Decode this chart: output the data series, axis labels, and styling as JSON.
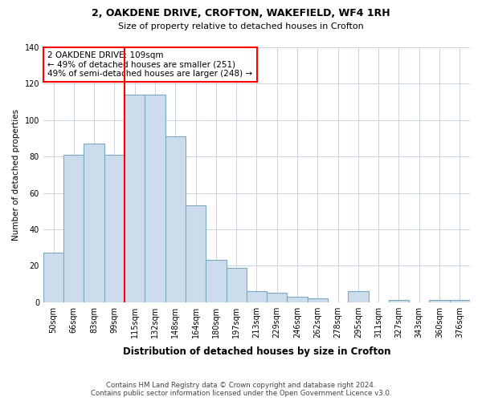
{
  "title1": "2, OAKDENE DRIVE, CROFTON, WAKEFIELD, WF4 1RH",
  "title2": "Size of property relative to detached houses in Crofton",
  "xlabel": "Distribution of detached houses by size in Crofton",
  "ylabel": "Number of detached properties",
  "footer1": "Contains HM Land Registry data © Crown copyright and database right 2024.",
  "footer2": "Contains public sector information licensed under the Open Government Licence v3.0.",
  "categories": [
    "50sqm",
    "66sqm",
    "83sqm",
    "99sqm",
    "115sqm",
    "132sqm",
    "148sqm",
    "164sqm",
    "180sqm",
    "197sqm",
    "213sqm",
    "229sqm",
    "246sqm",
    "262sqm",
    "278sqm",
    "295sqm",
    "311sqm",
    "327sqm",
    "343sqm",
    "360sqm",
    "376sqm"
  ],
  "values": [
    27,
    81,
    87,
    81,
    114,
    114,
    91,
    53,
    23,
    19,
    6,
    5,
    3,
    2,
    0,
    6,
    0,
    1,
    0,
    1,
    1
  ],
  "bar_color": "#ccdcec",
  "bar_edge_color": "#7aaabf",
  "red_line_index": 4,
  "annotation_title": "2 OAKDENE DRIVE: 109sqm",
  "annotation_line1": "← 49% of detached houses are smaller (251)",
  "annotation_line2": "49% of semi-detached houses are larger (248) →",
  "ylim": [
    0,
    140
  ],
  "yticks": [
    0,
    20,
    40,
    60,
    80,
    100,
    120,
    140
  ],
  "background_color": "#ffffff",
  "grid_color": "#c8d4e0"
}
